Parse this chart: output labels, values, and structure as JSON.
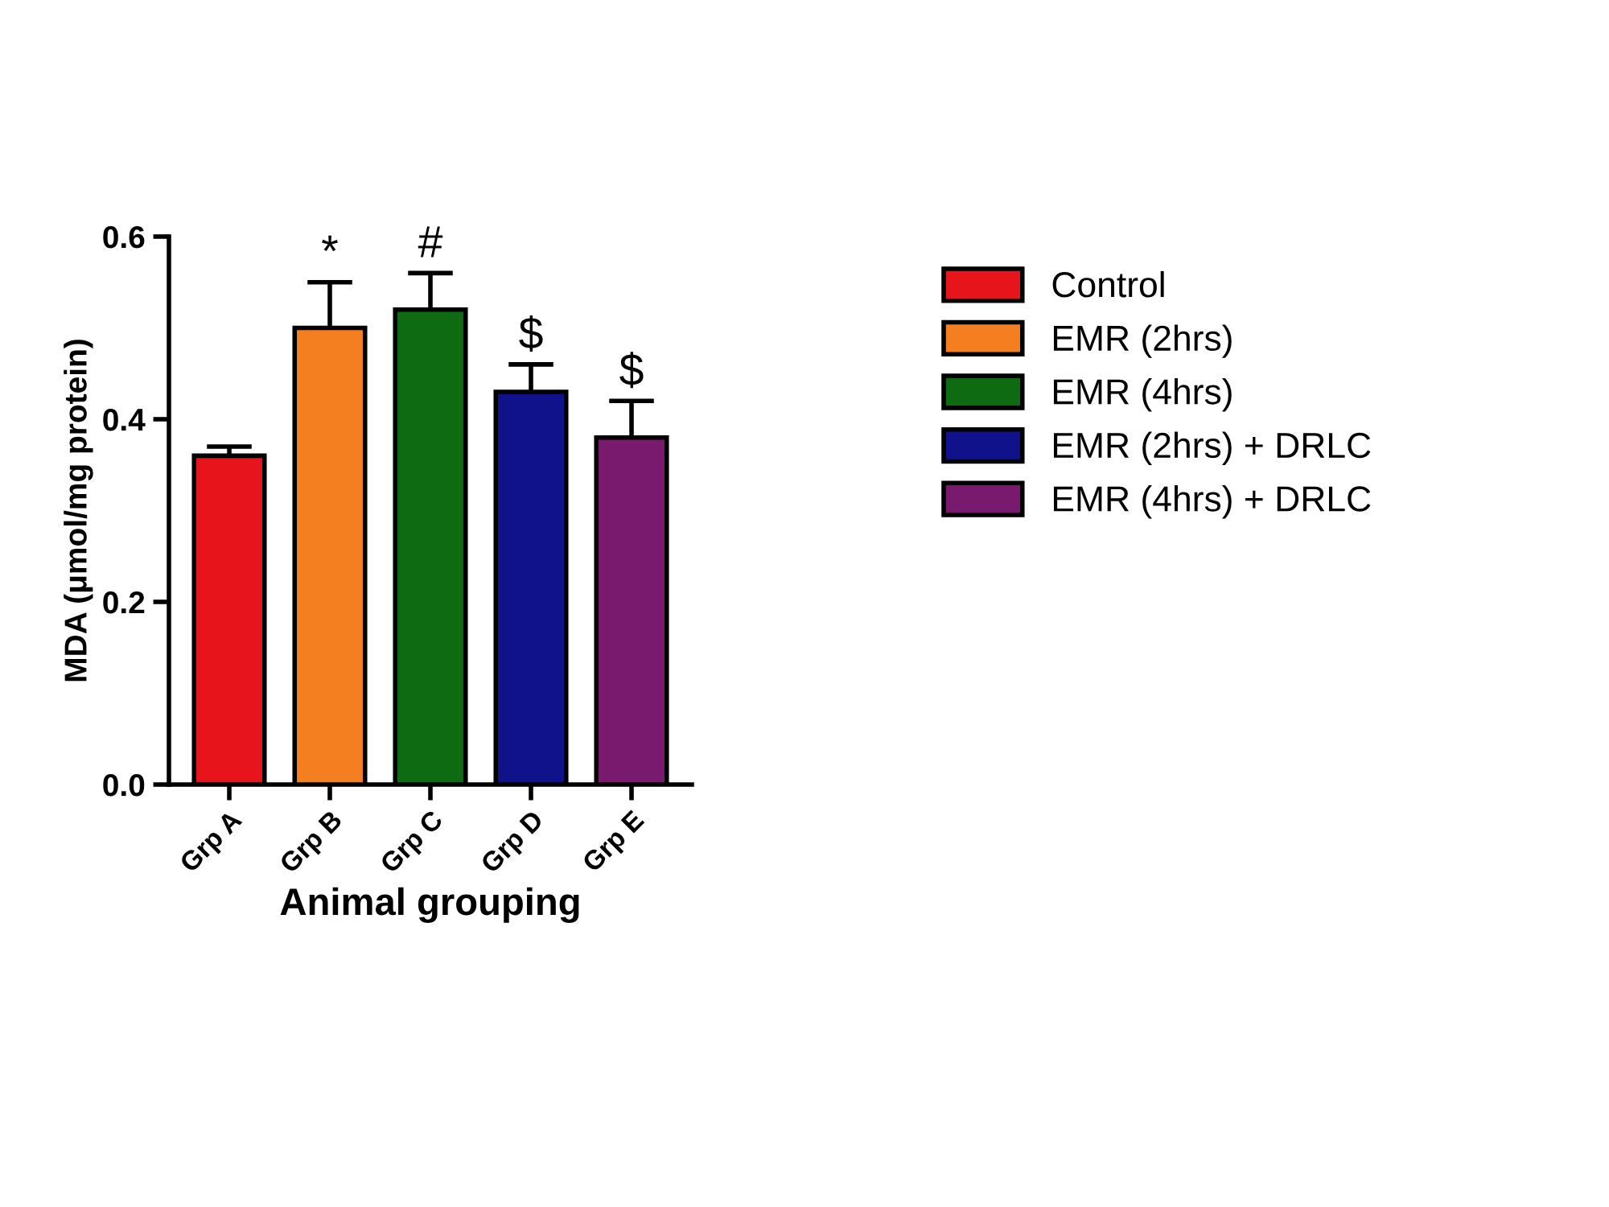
{
  "chart_data": {
    "type": "bar",
    "xlabel": "Animal grouping",
    "ylabel": "MDA (μmol/mg protein)",
    "categories": [
      "Grp A",
      "Grp B",
      "Grp C",
      "Grp D",
      "Grp E"
    ],
    "series": [
      {
        "name": "Control",
        "color": "#e8141c",
        "values": [
          0.36,
          null,
          null,
          null,
          null
        ],
        "errors": [
          0.01,
          null,
          null,
          null,
          null
        ]
      },
      {
        "name": "EMR (2hrs)",
        "color": "#f47f20",
        "values": [
          null,
          0.5,
          null,
          null,
          null
        ],
        "errors": [
          null,
          0.05,
          null,
          null,
          null
        ]
      },
      {
        "name": "EMR (4hrs)",
        "color": "#0f6b12",
        "values": [
          null,
          null,
          0.52,
          null,
          null
        ],
        "errors": [
          null,
          null,
          0.04,
          null,
          null
        ]
      },
      {
        "name": "EMR (2hrs) + DRLC",
        "color": "#10128c",
        "values": [
          null,
          null,
          null,
          0.43,
          null
        ],
        "errors": [
          null,
          null,
          null,
          0.03,
          null
        ]
      },
      {
        "name": "EMR (4hrs) + DRLC",
        "color": "#7a1a6e",
        "values": [
          null,
          null,
          null,
          null,
          0.38
        ],
        "errors": [
          null,
          null,
          null,
          null,
          0.04
        ]
      }
    ],
    "ylim": [
      0,
      0.6
    ],
    "yticks": [
      {
        "value": 0,
        "label": "0.0"
      },
      0.2,
      0.4,
      0.6
    ],
    "annotations": [
      {
        "text": "*",
        "x": "Grp B",
        "y": 0.55
      },
      {
        "text": "#",
        "x": "Grp C",
        "y": 0.56
      },
      {
        "text": "$",
        "x": "Grp D",
        "y": 0.46
      },
      {
        "text": "$",
        "x": "Grp E",
        "y": 0.42
      }
    ],
    "grid": false,
    "legend": "right"
  }
}
